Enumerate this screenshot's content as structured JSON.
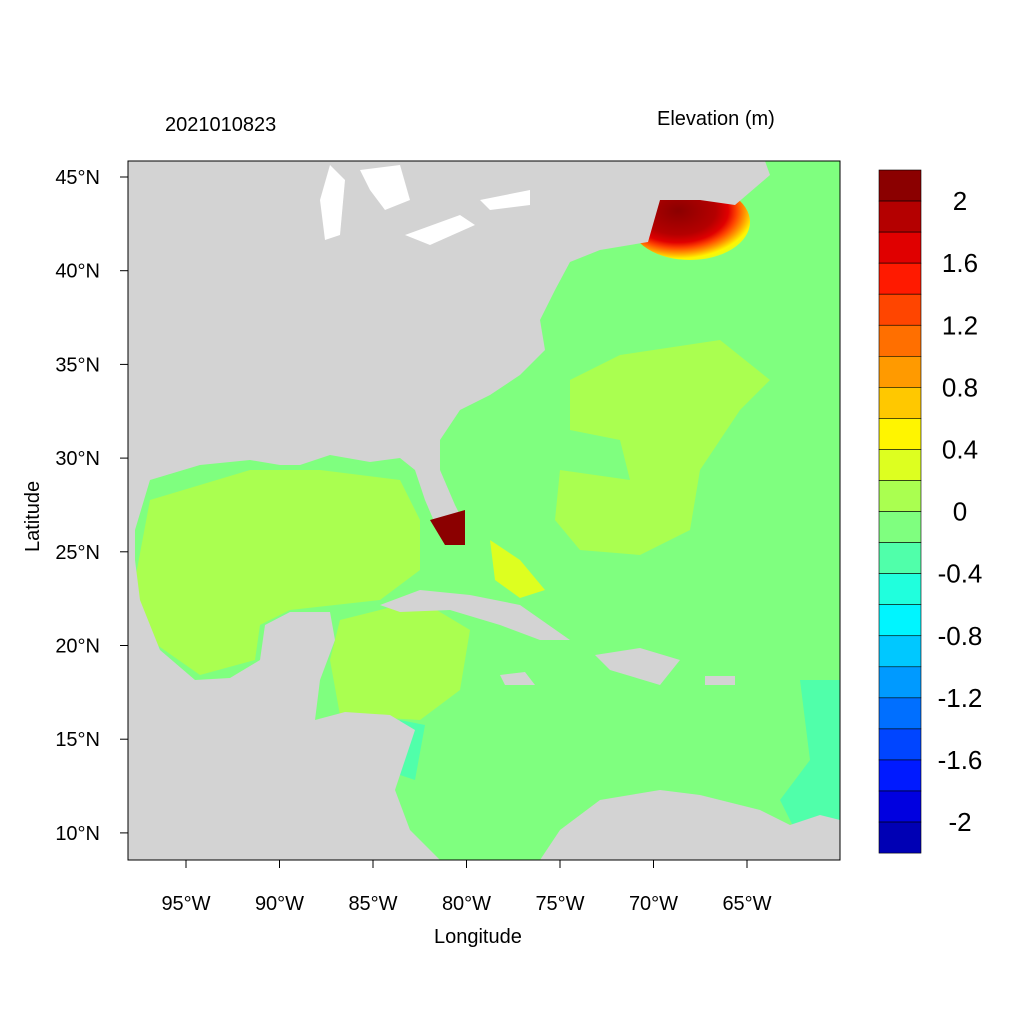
{
  "header": {
    "timestamp": "2021010823",
    "variable": "Elevation (m)"
  },
  "axes": {
    "xlabel": "Longitude",
    "ylabel": "Latitude",
    "xticks": [
      "95°W",
      "90°W",
      "85°W",
      "80°W",
      "75°W",
      "70°W",
      "65°W"
    ],
    "xtick_values": [
      -95,
      -90,
      -85,
      -80,
      -75,
      -70,
      -65
    ],
    "yticks": [
      "45°N",
      "40°N",
      "35°N",
      "30°N",
      "25°N",
      "20°N",
      "15°N",
      "10°N"
    ],
    "ytick_values": [
      45,
      40,
      35,
      30,
      25,
      20,
      15,
      10
    ],
    "xlim": [
      -98.1,
      -60.0
    ],
    "ylim": [
      8.6,
      45.8
    ]
  },
  "colors": {
    "land": "#D3D3D3",
    "ocean_zero": "#7FFF7F",
    "ocean_slight_positive": "#AAFF50"
  },
  "colorbar": {
    "labels": [
      "2",
      "1.6",
      "1.2",
      "0.8",
      "0.4",
      "0",
      "-0.4",
      "-0.8",
      "-1.2",
      "-1.6",
      "-2"
    ],
    "label_values": [
      2,
      1.6,
      1.2,
      0.8,
      0.4,
      0,
      -0.4,
      -0.8,
      -1.2,
      -1.6,
      -2
    ],
    "step": 0.2,
    "colors": [
      "#8B0000",
      "#B40000",
      "#E00000",
      "#FF1A00",
      "#FF4500",
      "#FF6F00",
      "#FF9A00",
      "#FFC800",
      "#FFF500",
      "#DDFF20",
      "#AAFF50",
      "#7FFF7F",
      "#50FFAA",
      "#20FFDD",
      "#00F5FF",
      "#00C8FF",
      "#009AFF",
      "#006FFF",
      "#0045FF",
      "#001AFF",
      "#0000E0",
      "#0000B4"
    ]
  }
}
